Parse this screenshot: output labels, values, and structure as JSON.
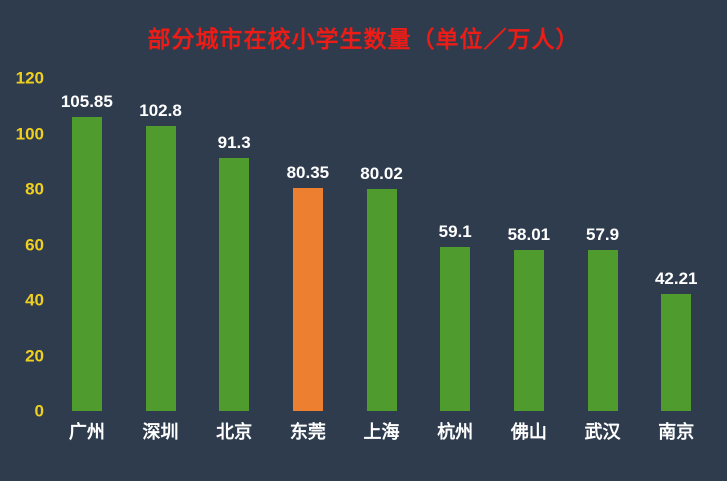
{
  "chart_data": {
    "type": "bar",
    "title": "部分城市在校小学生数量（单位／万人）",
    "categories": [
      "广州",
      "深圳",
      "北京",
      "东莞",
      "上海",
      "杭州",
      "佛山",
      "武汉",
      "南京"
    ],
    "values": [
      105.85,
      102.8,
      91.3,
      80.35,
      80.02,
      59.1,
      58.01,
      57.9,
      42.21
    ],
    "xlabel": "",
    "ylabel": "",
    "ylim": [
      0,
      120
    ],
    "yticks": [
      0,
      20,
      40,
      60,
      80,
      100,
      120
    ],
    "grid": "off",
    "legend": "none",
    "highlight_index": 3,
    "colors": {
      "background": "#2e3c4e",
      "title": "#ed1c16",
      "tick_label": "#f0d01e",
      "bar": "#4f9b2e",
      "highlight_bar": "#ec8030",
      "value_label": "#ffffff",
      "category_label": "#ffffff"
    }
  }
}
